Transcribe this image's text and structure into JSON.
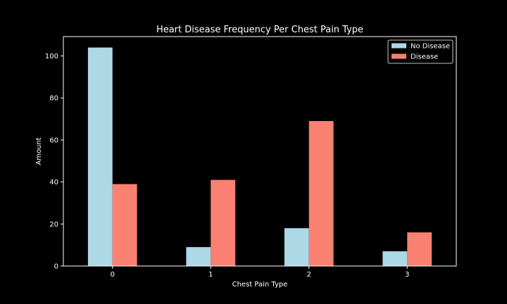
{
  "chart_data": {
    "type": "bar",
    "title": "Heart Disease Frequency Per Chest Pain Type",
    "xlabel": "Chest Pain Type",
    "ylabel": "Amount",
    "categories": [
      "0",
      "1",
      "2",
      "3"
    ],
    "series": [
      {
        "name": "No Disease",
        "values": [
          104,
          9,
          18,
          7
        ],
        "color": "#add8e6"
      },
      {
        "name": "Disease",
        "values": [
          39,
          41,
          69,
          16
        ],
        "color": "#fa8072"
      }
    ],
    "ylim": [
      0,
      109.2
    ],
    "yticks": [
      0,
      20,
      40,
      60,
      80,
      100
    ],
    "grid": false,
    "legend": "top-right",
    "background": "#000000",
    "foreground": "#ffffff"
  }
}
